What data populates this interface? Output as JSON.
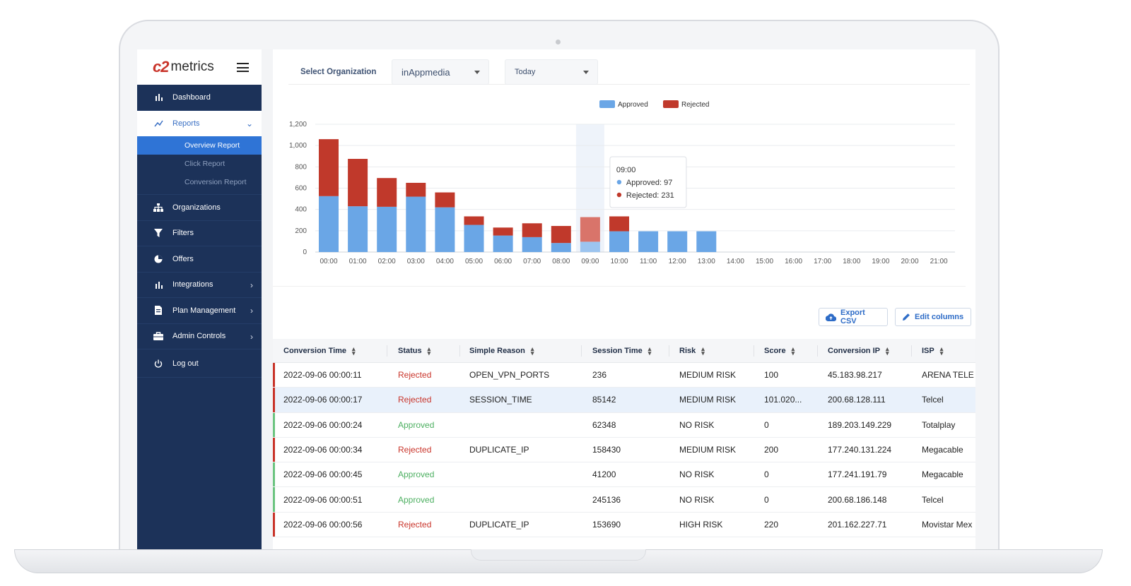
{
  "brand": {
    "logo_mark": "c2",
    "logo_text": "metrics"
  },
  "sidebar": {
    "items": [
      {
        "label": "Dashboard",
        "icon": "bar-chart-icon"
      },
      {
        "label": "Reports",
        "icon": "trend-line-icon"
      },
      {
        "label": "Organizations",
        "icon": "org-tree-icon"
      },
      {
        "label": "Filters",
        "icon": "funnel-icon"
      },
      {
        "label": "Offers",
        "icon": "pie-icon"
      },
      {
        "label": "Integrations",
        "icon": "bar-chart-icon"
      },
      {
        "label": "Plan Management",
        "icon": "document-icon"
      },
      {
        "label": "Admin Controls",
        "icon": "toolbox-icon"
      },
      {
        "label": "Log out",
        "icon": "power-icon"
      }
    ],
    "report_subitems": [
      "Overview Report",
      "Click Report",
      "Conversion Report"
    ],
    "active_subitem": "Overview Report"
  },
  "filters": {
    "org_label": "Select Organization",
    "org_value": "inAppmedia",
    "date_value": "Today"
  },
  "chart_data": {
    "type": "bar",
    "stacked": true,
    "categories": [
      "00:00",
      "01:00",
      "02:00",
      "03:00",
      "04:00",
      "05:00",
      "06:00",
      "07:00",
      "08:00",
      "09:00",
      "10:00",
      "11:00",
      "12:00",
      "13:00",
      "14:00",
      "15:00",
      "16:00",
      "17:00",
      "18:00",
      "19:00",
      "20:00",
      "21:00"
    ],
    "series": [
      {
        "name": "Approved",
        "color": "#6aa6e6",
        "values": [
          525,
          430,
          425,
          520,
          420,
          255,
          155,
          140,
          85,
          97,
          195,
          195,
          195,
          195,
          0,
          0,
          0,
          0,
          0,
          0,
          0,
          0
        ]
      },
      {
        "name": "Rejected",
        "color": "#c0392b",
        "values": [
          535,
          445,
          270,
          130,
          140,
          80,
          75,
          130,
          160,
          231,
          140,
          0,
          0,
          0,
          0,
          0,
          0,
          0,
          0,
          0,
          0,
          0
        ]
      }
    ],
    "ylim": [
      0,
      1200
    ],
    "yticks": [
      0,
      200,
      400,
      600,
      800,
      "1,000",
      "1,200"
    ],
    "legend_position": "top-center",
    "grid": true,
    "tooltip": {
      "title": "09:00",
      "lines": [
        "Approved: 97",
        "Rejected: 231"
      ]
    }
  },
  "actions": {
    "export_label": "Export CSV",
    "edit_label": "Edit columns"
  },
  "table": {
    "columns": [
      "Conversion Time",
      "Status",
      "Simple Reason",
      "Session Time",
      "Risk",
      "Score",
      "Conversion IP",
      "ISP"
    ],
    "rows": [
      {
        "time": "2022-09-06 00:00:11",
        "status": "Rejected",
        "reason": "OPEN_VPN_PORTS",
        "session": "236",
        "risk": "MEDIUM RISK",
        "score": "100",
        "ip": "45.183.98.217",
        "isp": "ARENA TELE"
      },
      {
        "time": "2022-09-06 00:00:17",
        "status": "Rejected",
        "reason": "SESSION_TIME",
        "session": "85142",
        "risk": "MEDIUM RISK",
        "score": "101.020...",
        "ip": "200.68.128.111",
        "isp": "Telcel"
      },
      {
        "time": "2022-09-06 00:00:24",
        "status": "Approved",
        "reason": "",
        "session": "62348",
        "risk": "NO RISK",
        "score": "0",
        "ip": "189.203.149.229",
        "isp": "Totalplay"
      },
      {
        "time": "2022-09-06 00:00:34",
        "status": "Rejected",
        "reason": "DUPLICATE_IP",
        "session": "158430",
        "risk": "MEDIUM RISK",
        "score": "200",
        "ip": "177.240.131.224",
        "isp": "Megacable"
      },
      {
        "time": "2022-09-06 00:00:45",
        "status": "Approved",
        "reason": "",
        "session": "41200",
        "risk": "NO RISK",
        "score": "0",
        "ip": "177.241.191.79",
        "isp": "Megacable"
      },
      {
        "time": "2022-09-06 00:00:51",
        "status": "Approved",
        "reason": "",
        "session": "245136",
        "risk": "NO RISK",
        "score": "0",
        "ip": "200.68.186.148",
        "isp": "Telcel"
      },
      {
        "time": "2022-09-06 00:00:56",
        "status": "Rejected",
        "reason": "DUPLICATE_IP",
        "session": "153690",
        "risk": "HIGH RISK",
        "score": "220",
        "ip": "201.162.227.71",
        "isp": "Movistar Mex"
      }
    ]
  },
  "colors": {
    "sidebar": "#1c3259",
    "accent": "#2f74d6",
    "approved": "#4caf60",
    "rejected": "#c9342a"
  }
}
